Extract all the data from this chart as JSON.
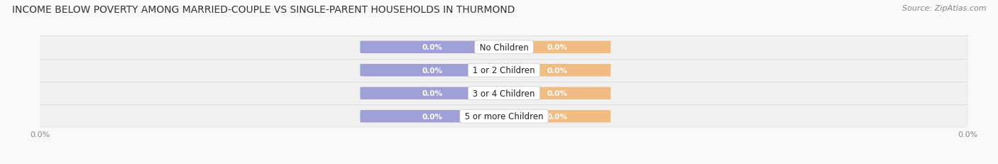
{
  "title": "INCOME BELOW POVERTY AMONG MARRIED-COUPLE VS SINGLE-PARENT HOUSEHOLDS IN THURMOND",
  "source": "Source: ZipAtlas.com",
  "categories": [
    "No Children",
    "1 or 2 Children",
    "3 or 4 Children",
    "5 or more Children"
  ],
  "married_values": [
    0.0,
    0.0,
    0.0,
    0.0
  ],
  "single_values": [
    0.0,
    0.0,
    0.0,
    0.0
  ],
  "married_color": "#a0a0d8",
  "single_color": "#f0bc82",
  "bar_height": 0.52,
  "title_fontsize": 10,
  "source_fontsize": 8,
  "label_fontsize": 7.5,
  "cat_fontsize": 8.5,
  "tick_fontsize": 8,
  "row_bg_light": "#f5f5f5",
  "row_bg_dark": "#eeeeee",
  "fig_bg": "#f8f8f8"
}
